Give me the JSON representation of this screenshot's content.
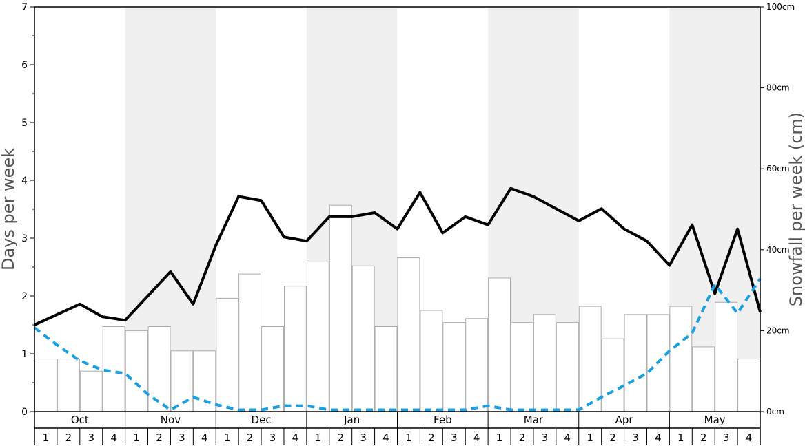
{
  "chart_data": {
    "type": "bar",
    "ylabel_left": "Days per week",
    "ylabel_right": "Snowfall per week (cm)",
    "ylim_left": [
      0,
      7
    ],
    "ylim_right": [
      0,
      100
    ],
    "left_ticks": [
      "0",
      "1",
      "2",
      "3",
      "4",
      "5",
      "6",
      "7"
    ],
    "right_ticks": [
      "0cm",
      "20cm",
      "40cm",
      "60cm",
      "80cm",
      "100cm"
    ],
    "months": [
      "Oct",
      "Nov",
      "Dec",
      "Jan",
      "Feb",
      "Mar",
      "Apr",
      "May"
    ],
    "weeks": [
      "1",
      "2",
      "3",
      "4"
    ],
    "shaded_months": [
      "Nov",
      "Jan",
      "Mar",
      "May"
    ],
    "series": [
      {
        "kind": "bar",
        "axis": "right",
        "color": "#ffffff",
        "edge": "#aaaaaa",
        "values": [
          13,
          13,
          10,
          21,
          20,
          21,
          15,
          15,
          28,
          34,
          21,
          31,
          37,
          51,
          36,
          21,
          38,
          25,
          22,
          23,
          33,
          22,
          24,
          22,
          26,
          18,
          24,
          24,
          26,
          16,
          27,
          13
        ]
      },
      {
        "kind": "line",
        "axis": "left",
        "color": "#000000",
        "style": "solid",
        "values": [
          1.5,
          1.68,
          1.86,
          1.64,
          1.58,
          2.0,
          2.42,
          1.86,
          2.88,
          3.72,
          3.65,
          3.02,
          2.95,
          3.37,
          3.37,
          3.44,
          3.16,
          3.79,
          3.09,
          3.37,
          3.23,
          3.86,
          3.72,
          3.51,
          3.3,
          3.51,
          3.16,
          2.95,
          2.53,
          3.23,
          2.04,
          3.16,
          1.72
        ]
      },
      {
        "kind": "line",
        "axis": "left",
        "color": "#1a9fe0",
        "style": "dashed",
        "values": [
          1.45,
          1.15,
          0.88,
          0.72,
          0.66,
          0.3,
          0.03,
          0.25,
          0.12,
          0.03,
          0.03,
          0.1,
          0.1,
          0.03,
          0.03,
          0.03,
          0.03,
          0.03,
          0.03,
          0.03,
          0.1,
          0.03,
          0.03,
          0.03,
          0.03,
          0.25,
          0.45,
          0.66,
          1.05,
          1.36,
          2.2,
          1.7,
          2.3
        ]
      }
    ]
  },
  "colors": {
    "shade": "#f0f0f0",
    "blue": "#1a9fe0",
    "axis": "#000000"
  }
}
